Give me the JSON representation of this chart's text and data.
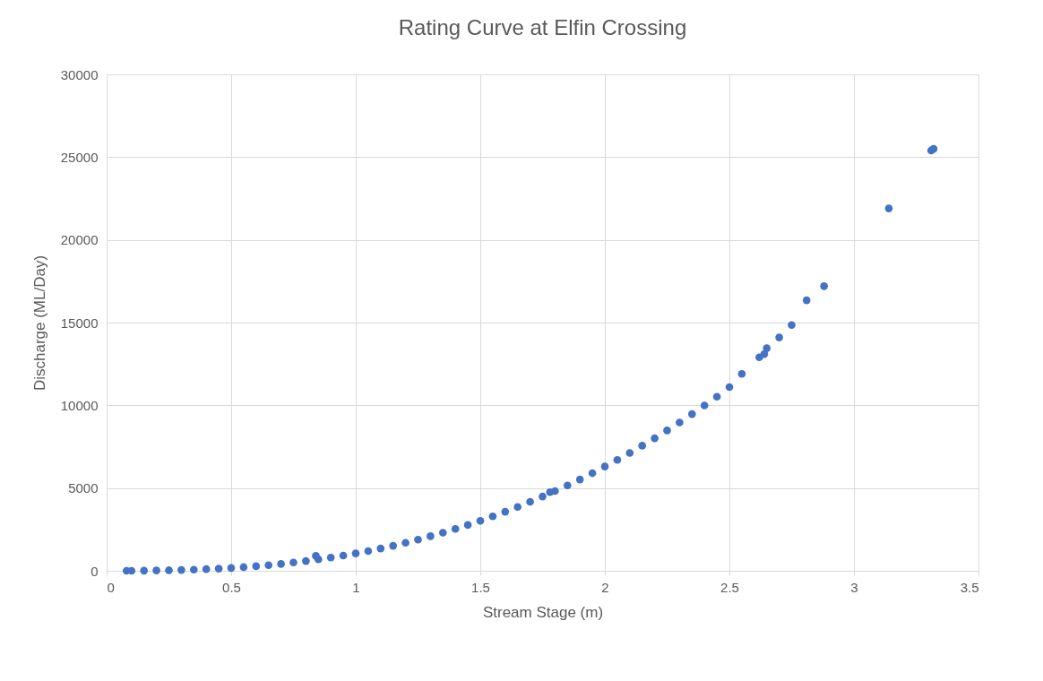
{
  "chart_data": {
    "type": "scatter",
    "title": "Rating Curve at Elfin Crossing",
    "xlabel": "Stream Stage (m)",
    "ylabel": "Discharge (ML/Day)",
    "x": [
      0.08,
      0.1,
      0.15,
      0.2,
      0.25,
      0.3,
      0.35,
      0.4,
      0.45,
      0.5,
      0.55,
      0.6,
      0.65,
      0.7,
      0.75,
      0.8,
      0.84,
      0.85,
      0.9,
      0.95,
      1.0,
      1.05,
      1.1,
      1.15,
      1.2,
      1.25,
      1.3,
      1.35,
      1.4,
      1.45,
      1.5,
      1.55,
      1.6,
      1.65,
      1.7,
      1.75,
      1.78,
      1.8,
      1.85,
      1.9,
      1.95,
      2.0,
      2.05,
      2.1,
      2.15,
      2.2,
      2.25,
      2.3,
      2.35,
      2.4,
      2.45,
      2.5,
      2.55,
      2.62,
      2.64,
      2.65,
      2.7,
      2.75,
      2.81,
      2.88,
      3.14,
      3.31,
      3.32
    ],
    "series": [
      {
        "color": "#4472c4",
        "values": [
          0,
          0,
          10,
          20,
          30,
          50,
          70,
          100,
          130,
          170,
          220,
          280,
          340,
          410,
          500,
          590,
          900,
          690,
          800,
          920,
          1050,
          1190,
          1350,
          1510,
          1690,
          1880,
          2090,
          2300,
          2530,
          2770,
          3020,
          3290,
          3570,
          3860,
          4170,
          4490,
          4750,
          4820,
          5160,
          5520,
          5900,
          6300,
          6700,
          7120,
          7560,
          8010,
          8480,
          8960,
          9470,
          9990,
          10520,
          11100,
          11900,
          12900,
          13100,
          13450,
          14100,
          14850,
          16350,
          17200,
          21900,
          25400,
          25500
        ]
      }
    ],
    "xlim": [
      0,
      3.5
    ],
    "xticks": [
      0,
      0.5,
      1,
      1.5,
      2,
      2.5,
      3,
      3.5
    ],
    "ylim": [
      0,
      30000
    ],
    "yticks": [
      0,
      5000,
      10000,
      15000,
      20000,
      25000,
      30000
    ],
    "grid": true,
    "marker": "circle"
  }
}
